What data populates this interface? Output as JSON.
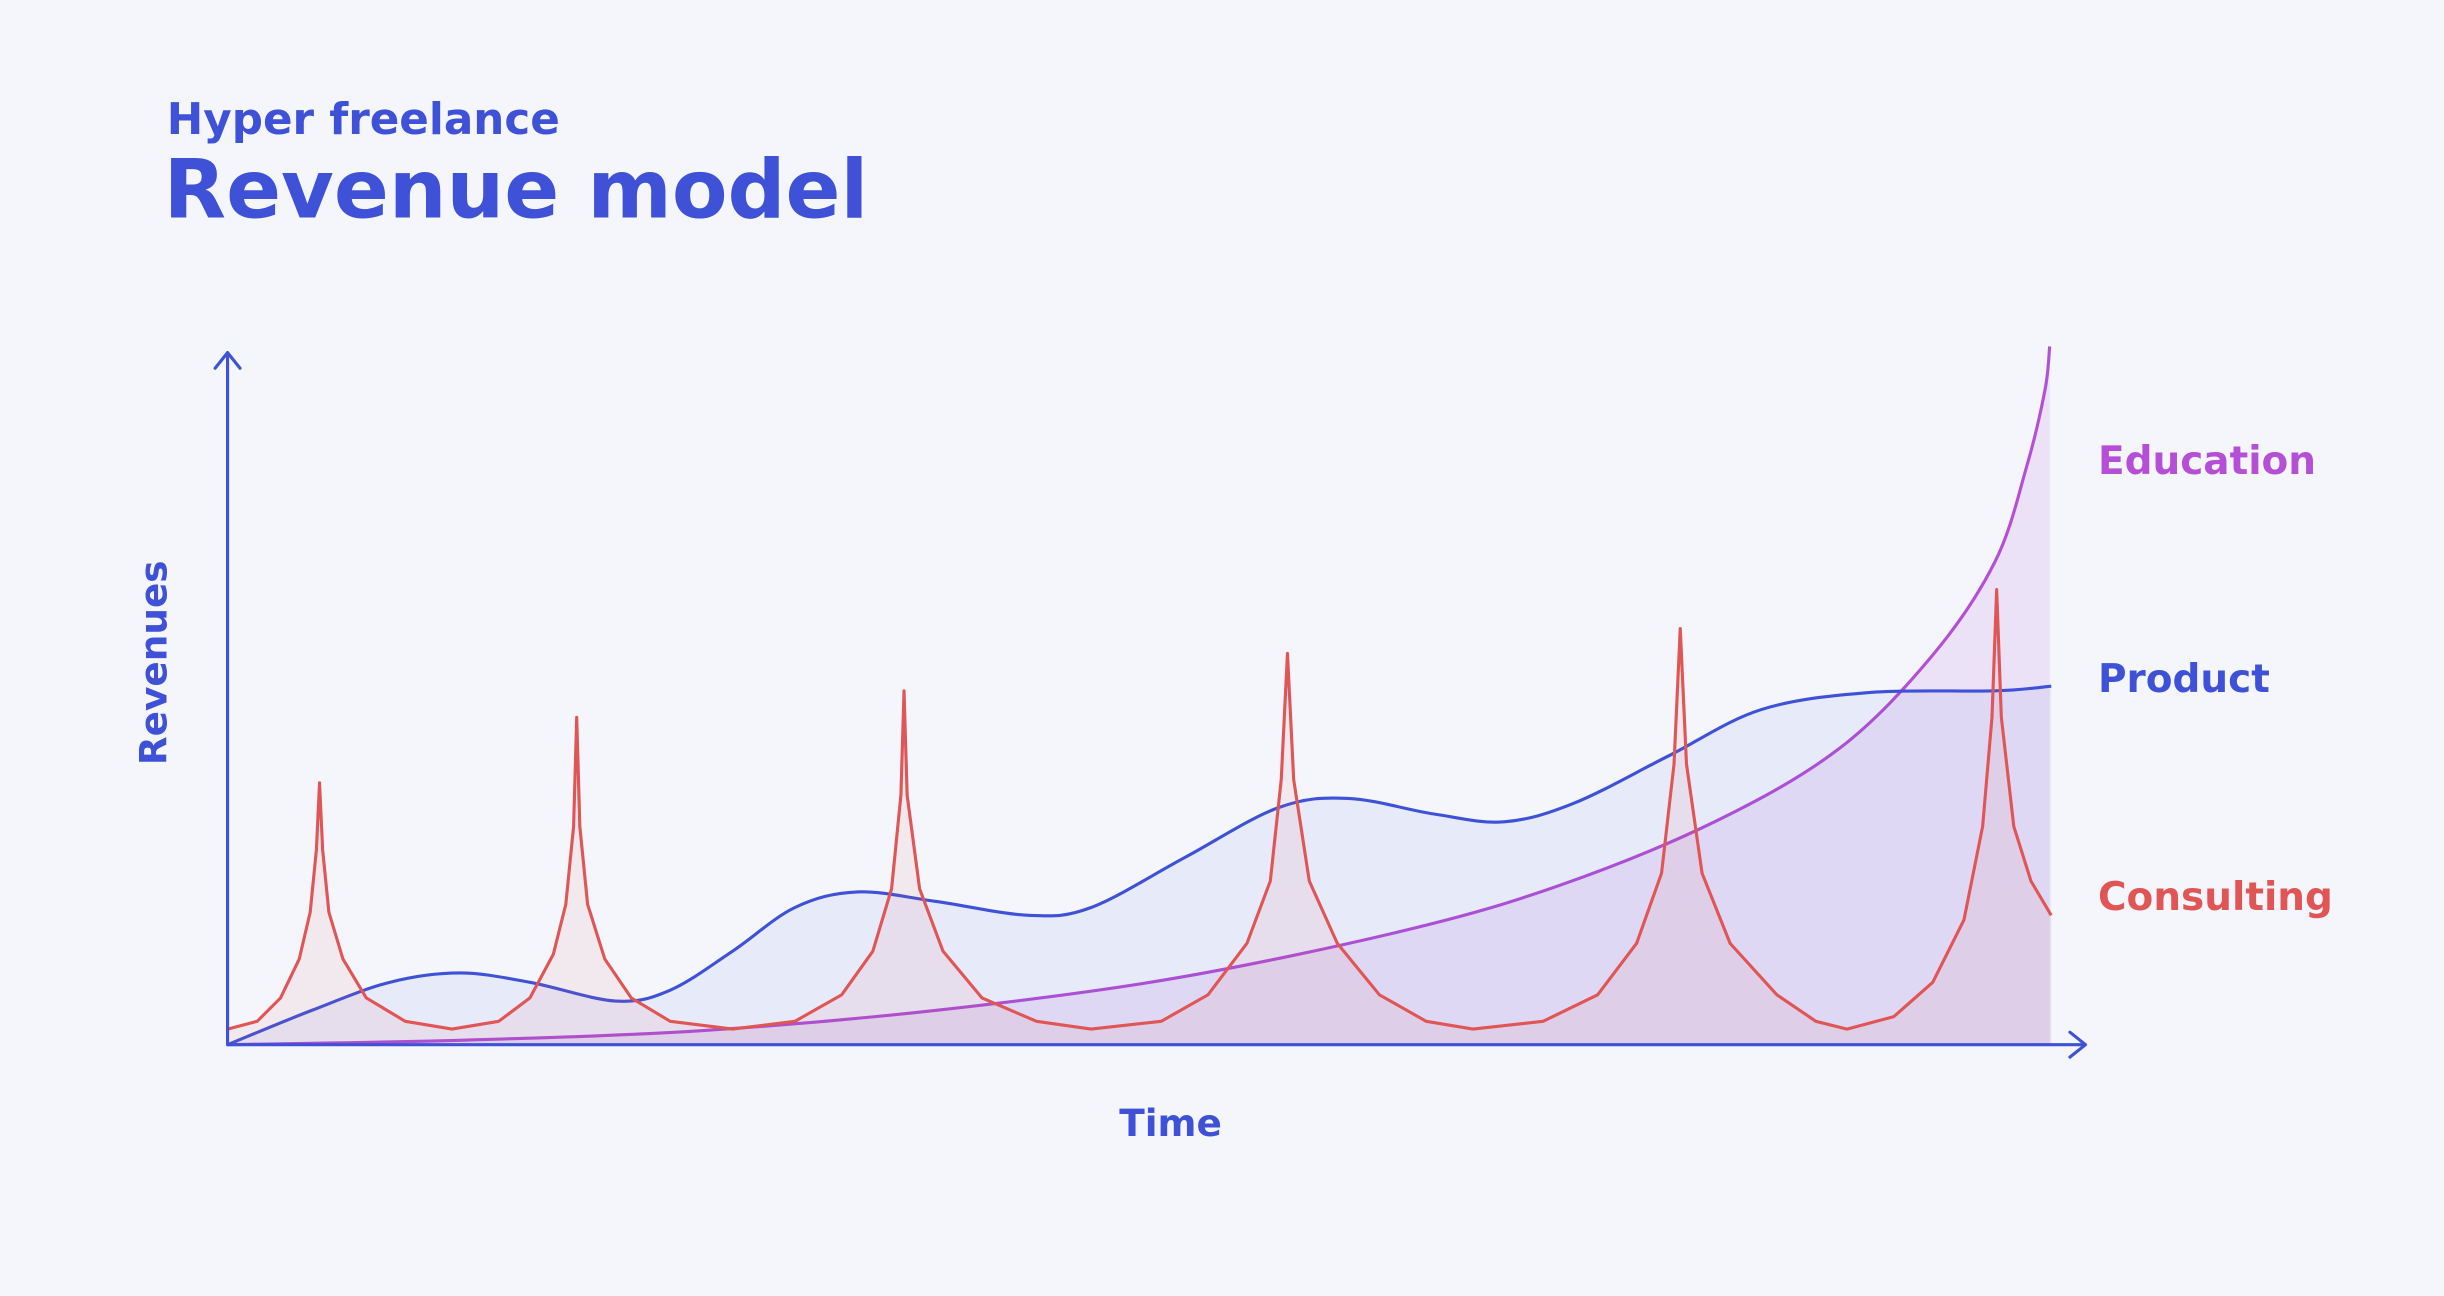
{
  "chart_data": {
    "type": "area",
    "subtitle": "Hyper freelance",
    "title": "Revenue model",
    "x_label": "Time",
    "y_label": "Revenues",
    "xlim": [
      0,
      117
    ],
    "ylim": [
      0,
      45
    ],
    "series": [
      {
        "name": "Education",
        "color": "#b44fd6",
        "x": [
          0,
          15.4,
          30.4,
          45.4,
          60.4,
          75.4,
          85.4,
          95.4,
          103.4,
          109.4,
          113.4,
          115.4,
          116.6,
          116.9
        ],
        "values": [
          0,
          0.3,
          0.9,
          2.2,
          4.2,
          7.3,
          10.2,
          14.3,
          19,
          25,
          31,
          37,
          42,
          44.8
        ]
      },
      {
        "name": "Product",
        "color": "#3f51d6",
        "x": [
          0,
          5.4,
          10.4,
          14.9,
          19.4,
          24.9,
          28.4,
          32.4,
          36.4,
          40.4,
          45.4,
          51.4,
          55.4,
          61.4,
          67.4,
          71.9,
          77.4,
          81.9,
          86.4,
          92.4,
          98.4,
          105.4,
          113.4,
          117
        ],
        "values": [
          0,
          2.2,
          4,
          4.6,
          4,
          2.8,
          3.5,
          6,
          8.8,
          9.8,
          9.2,
          8.3,
          8.8,
          12,
          15.2,
          15.8,
          14.8,
          14.3,
          15.5,
          18.5,
          21.5,
          22.6,
          22.7,
          23
        ]
      },
      {
        "name": "Consulting",
        "color": "#e05555",
        "x": [
          0,
          1.9,
          3.4,
          4.6,
          5.3,
          5.7,
          5.9,
          6.1,
          6.5,
          7.4,
          8.9,
          11.4,
          14.4,
          17.4,
          19.4,
          20.9,
          21.7,
          22.2,
          22.4,
          22.6,
          23.1,
          24.2,
          25.9,
          28.4,
          32.4,
          36.4,
          39.4,
          41.4,
          42.6,
          43.2,
          43.4,
          43.6,
          44.4,
          45.9,
          48.4,
          51.9,
          55.4,
          59.9,
          62.9,
          65.4,
          66.9,
          67.6,
          68,
          68.4,
          69.4,
          71.2,
          73.9,
          76.9,
          79.9,
          84.4,
          87.9,
          90.4,
          92,
          92.8,
          93.2,
          93.6,
          94.6,
          96.4,
          99.4,
          101.9,
          103.9,
          106.9,
          109.4,
          111.4,
          112.6,
          113.2,
          113.5,
          113.8,
          114.6,
          115.7,
          117
        ],
        "values": [
          1,
          1.5,
          3,
          5.5,
          8.5,
          12.5,
          16.8,
          12.5,
          8.5,
          5.5,
          3,
          1.5,
          1,
          1.5,
          3,
          5.8,
          9,
          14,
          21,
          14,
          9,
          5.5,
          3,
          1.5,
          1,
          1.5,
          3.2,
          6,
          10,
          16,
          22.7,
          16,
          10,
          6,
          3,
          1.5,
          1,
          1.5,
          3.2,
          6.5,
          10.5,
          17,
          25.1,
          17,
          10.5,
          6.5,
          3.2,
          1.5,
          1,
          1.5,
          3.2,
          6.5,
          11,
          18,
          26.7,
          18,
          11,
          6.5,
          3.2,
          1.5,
          1,
          1.8,
          4,
          8,
          14,
          21,
          29.2,
          21,
          14,
          10.5,
          8.3
        ]
      }
    ]
  }
}
